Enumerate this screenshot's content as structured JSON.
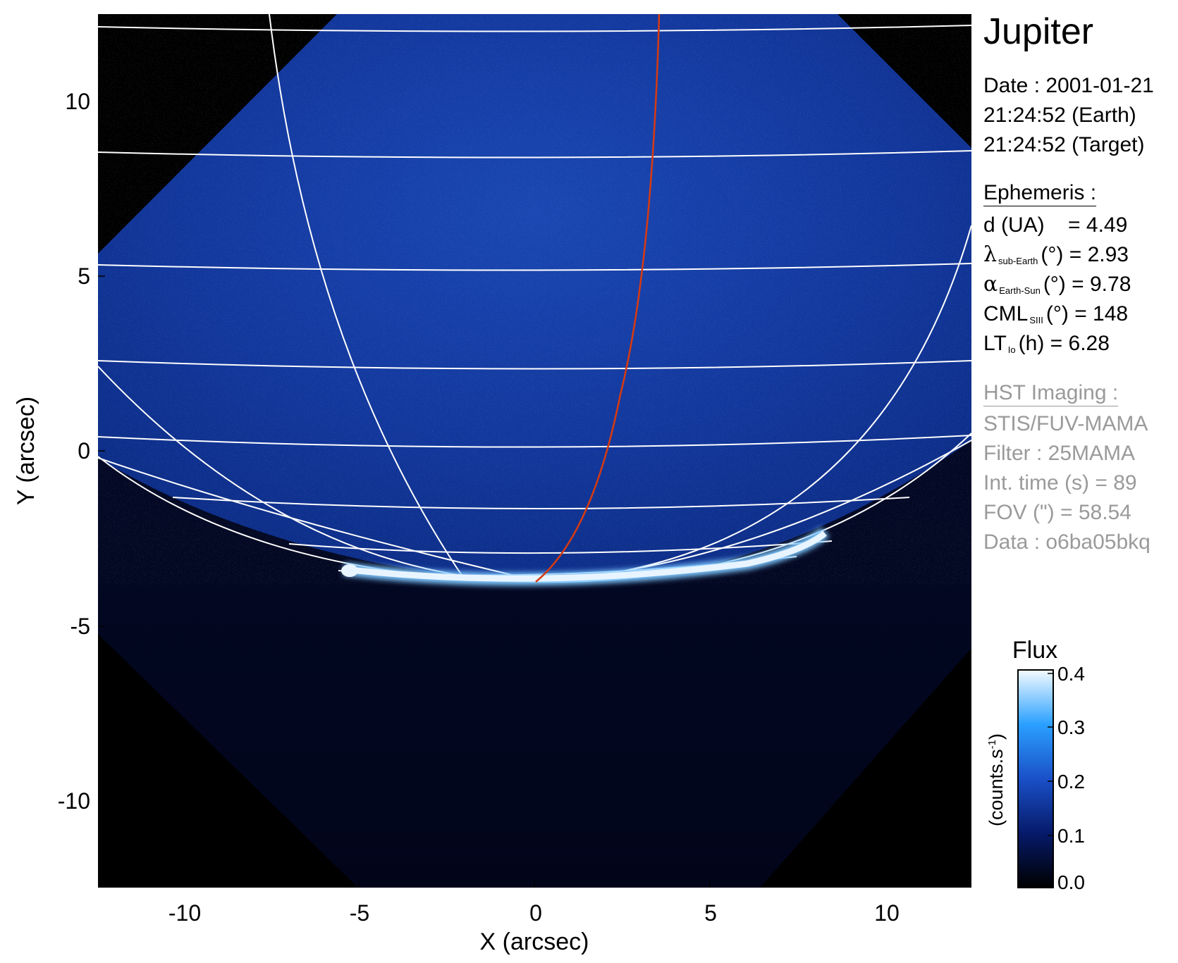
{
  "figure": {
    "target": "Jupiter",
    "date_label": "Date : 2001-01-21",
    "time_earth": "21:24:52 (Earth)",
    "time_target": "21:24:52 (Target)",
    "ephemeris": {
      "header": "Ephemeris :",
      "distance": {
        "label": "d (UA)",
        "value": "= 4.49"
      },
      "lat_sub_earth": {
        "symbol": "λ",
        "subscript": "sub-Earth",
        "unit": "(°)",
        "value": "= 2.93"
      },
      "phase_angle": {
        "symbol": "α",
        "subscript": "Earth-Sun",
        "unit": "(°)",
        "value": "= 9.78"
      },
      "cml": {
        "symbol": "CML",
        "subscript": "SIII",
        "unit": "(°)",
        "value": "= 148"
      },
      "lt_io": {
        "symbol": "LT",
        "subscript": "Io",
        "unit": "(h)",
        "value": "= 6.28"
      }
    },
    "imaging": {
      "header": "HST Imaging :",
      "instrument": "STIS/FUV-MAMA",
      "filter": "Filter : 25MAMA",
      "int_time": "Int. time (s) = 89",
      "fov": "FOV (\") = 58.54",
      "data_id": "Data : o6ba05bkq"
    },
    "colorbar": {
      "title": "Flux",
      "unit_label": "(counts.s",
      "unit_sup": "-1",
      "unit_close": ")",
      "ticks": [
        "0.4",
        "0.3",
        "0.2",
        "0.1",
        "0.0"
      ]
    },
    "axes": {
      "xlabel": "X (arcsec)",
      "ylabel": "Y (arcsec)",
      "xticks": [
        "-10",
        "-5",
        "0",
        "5",
        "10"
      ],
      "yticks": [
        "10",
        "5",
        "0",
        "-5",
        "-10"
      ]
    },
    "colors": {
      "background_sky": "#000000",
      "disk_blue": "#0b2f8e",
      "grid_line": "#ffffff",
      "io_footprint_line": "#d83a10",
      "aurora": "#e8f4ff",
      "label_grey": "#9a9a9a"
    }
  }
}
